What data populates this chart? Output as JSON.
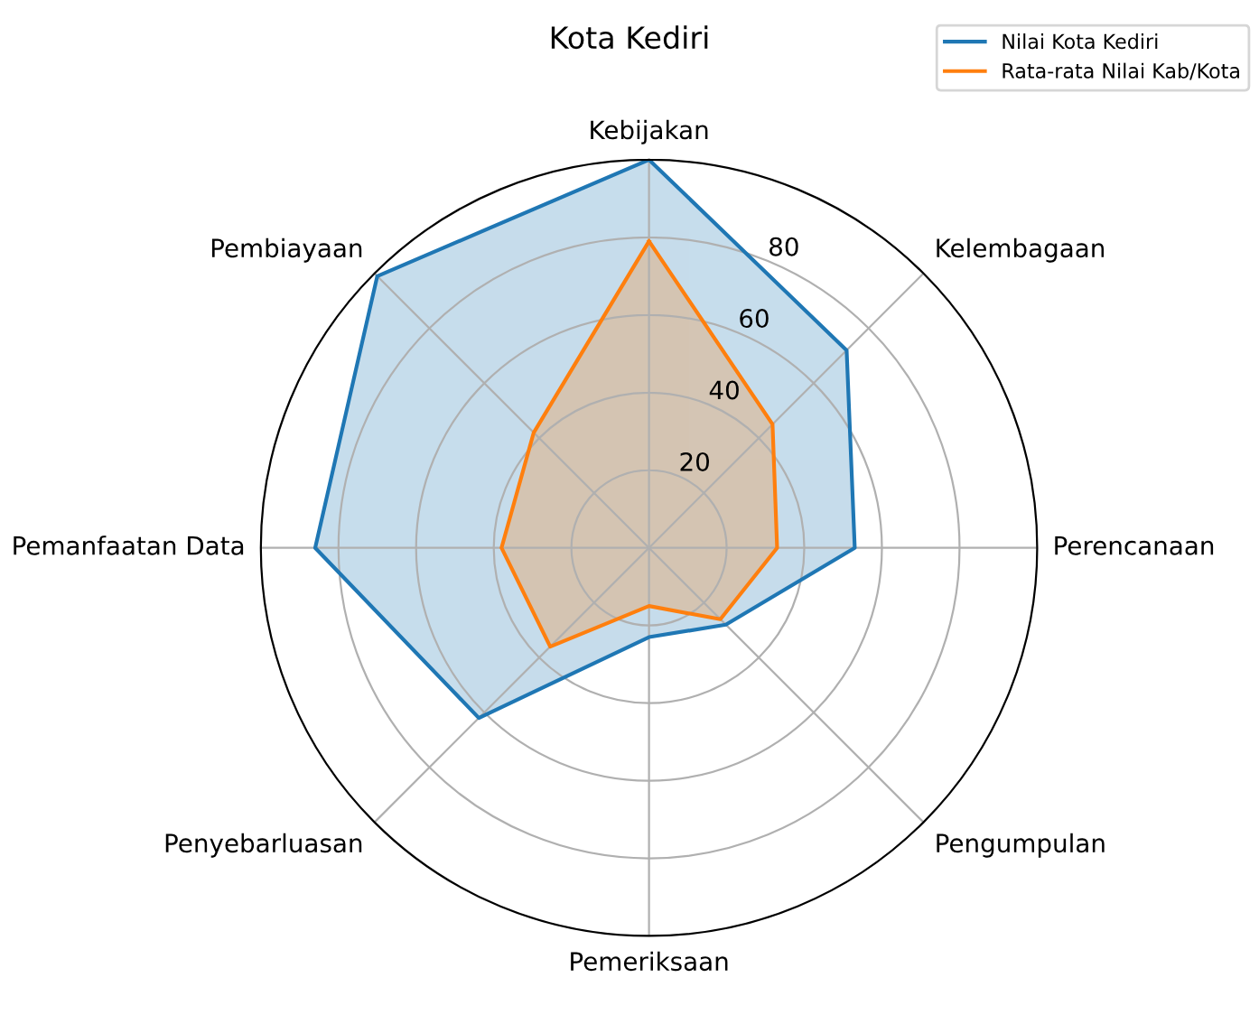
{
  "chart_data": {
    "type": "radar",
    "title": "Kota Kediri",
    "categories": [
      "Kebijakan",
      "Kelembagaan",
      "Perencanaan",
      "Pengumpulan",
      "Pemeriksaan",
      "Penyebarluasan",
      "Pemanfaatan Data",
      "Pembiayaan"
    ],
    "series": [
      {
        "name": "Nilai Kota Kediri",
        "color": "#1f77b4",
        "values": [
          100,
          72,
          53,
          28,
          23,
          62,
          86,
          99
        ]
      },
      {
        "name": "Rata-rata Nilai Kab/Kota",
        "color": "#ff7f0e",
        "values": [
          79,
          45,
          33,
          26,
          15,
          36,
          38,
          42
        ]
      }
    ],
    "ylim": [
      0,
      100
    ],
    "yticks": [
      20,
      40,
      60,
      80
    ],
    "grid": true,
    "legend": "top right"
  }
}
